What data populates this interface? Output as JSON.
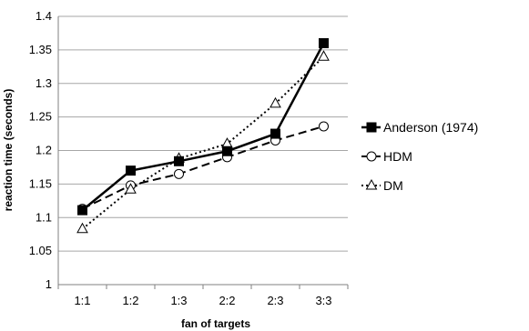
{
  "chart_data": {
    "type": "line",
    "categories": [
      "1:1",
      "1:2",
      "1:3",
      "2:2",
      "2:3",
      "3:3"
    ],
    "xlabel": "fan of targets",
    "ylabel": "reaction time (seconds)",
    "ylim": [
      1,
      1.4
    ],
    "yticks": [
      "1",
      "1.05",
      "1.1",
      "1.15",
      "1.2",
      "1.25",
      "1.3",
      "1.35",
      "1.4"
    ],
    "grid": "horizontal",
    "legend": "right",
    "series": [
      {
        "name": "Anderson (1974)",
        "values": [
          1.111,
          1.17,
          1.184,
          1.199,
          1.225,
          1.36
        ],
        "style": "solid",
        "marker": "filled-square",
        "color": "#000000"
      },
      {
        "name": "HDM",
        "values": [
          1.113,
          1.148,
          1.165,
          1.19,
          1.215,
          1.236
        ],
        "style": "dashed",
        "marker": "open-circle",
        "color": "#000000"
      },
      {
        "name": "DM",
        "values": [
          1.083,
          1.142,
          1.188,
          1.21,
          1.27,
          1.34
        ],
        "style": "dotted",
        "marker": "open-triangle",
        "color": "#000000"
      }
    ]
  }
}
